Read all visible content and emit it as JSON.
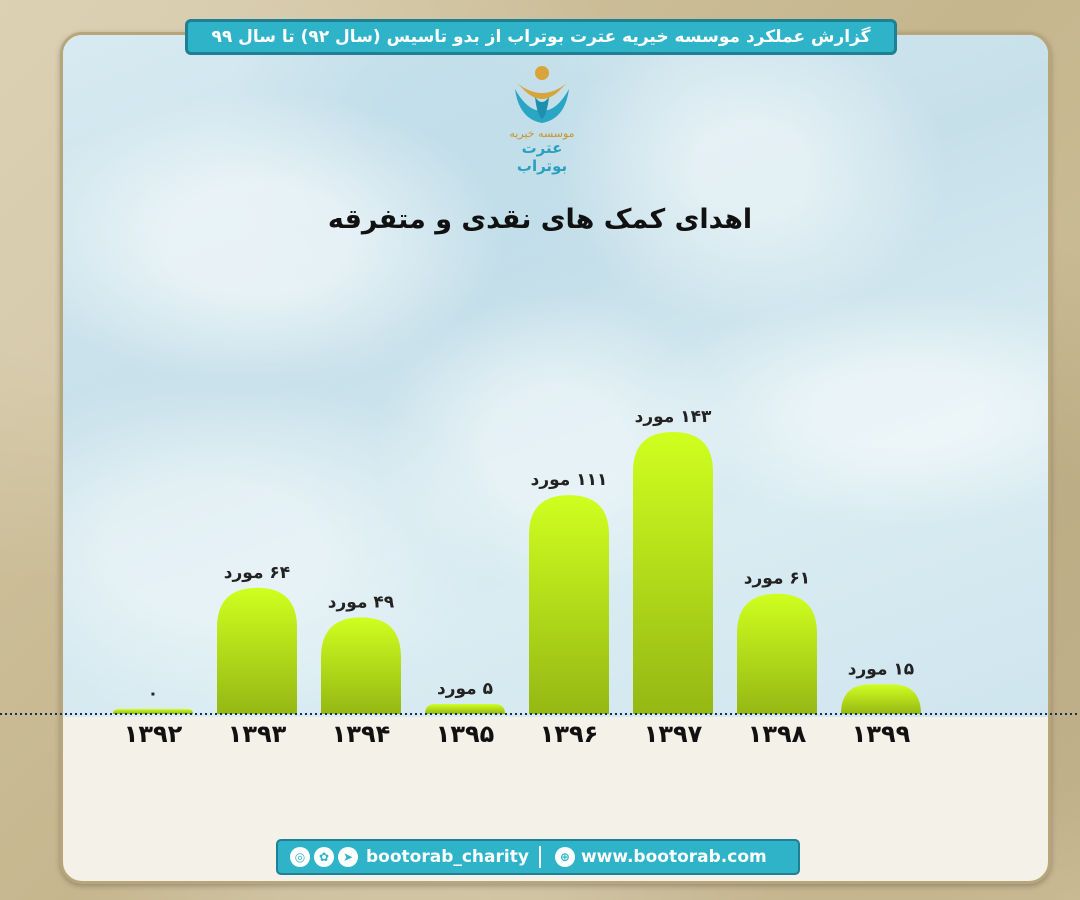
{
  "header": {
    "banner_text": "گزارش عملکرد موسسه خیریه عترت بوتراب از بدو تاسیس (سال ۹۲) تا سال ۹۹"
  },
  "logo": {
    "line1": "موسسه خیریه",
    "line2": "عترت بوتراب"
  },
  "chart_data": {
    "type": "bar",
    "title": "اهدای کمک های نقدی و متفرقه",
    "categories": [
      "۱۳۹۲",
      "۱۳۹۳",
      "۱۳۹۴",
      "۱۳۹۵",
      "۱۳۹۶",
      "۱۳۹۷",
      "۱۳۹۸",
      "۱۳۹۹"
    ],
    "values": [
      0,
      64,
      49,
      5,
      111,
      143,
      61,
      15
    ],
    "data_labels": [
      "۰",
      "۶۴ مورد",
      "۴۹ مورد",
      "۵ مورد",
      "۱۱۱ مورد",
      "۱۴۳ مورد",
      "۶۱ مورد",
      "۱۵ مورد"
    ],
    "ylim": [
      0,
      143
    ],
    "colors": {
      "bar_top": "#cfff1f",
      "bar_bottom": "#95b814",
      "baseline": "#1a2a5a"
    }
  },
  "footer": {
    "handle": "bootorab_charity",
    "website": "www.bootorab.com",
    "icons": [
      "instagram-icon",
      "aparat-icon",
      "telegram-icon",
      "globe-icon"
    ]
  }
}
